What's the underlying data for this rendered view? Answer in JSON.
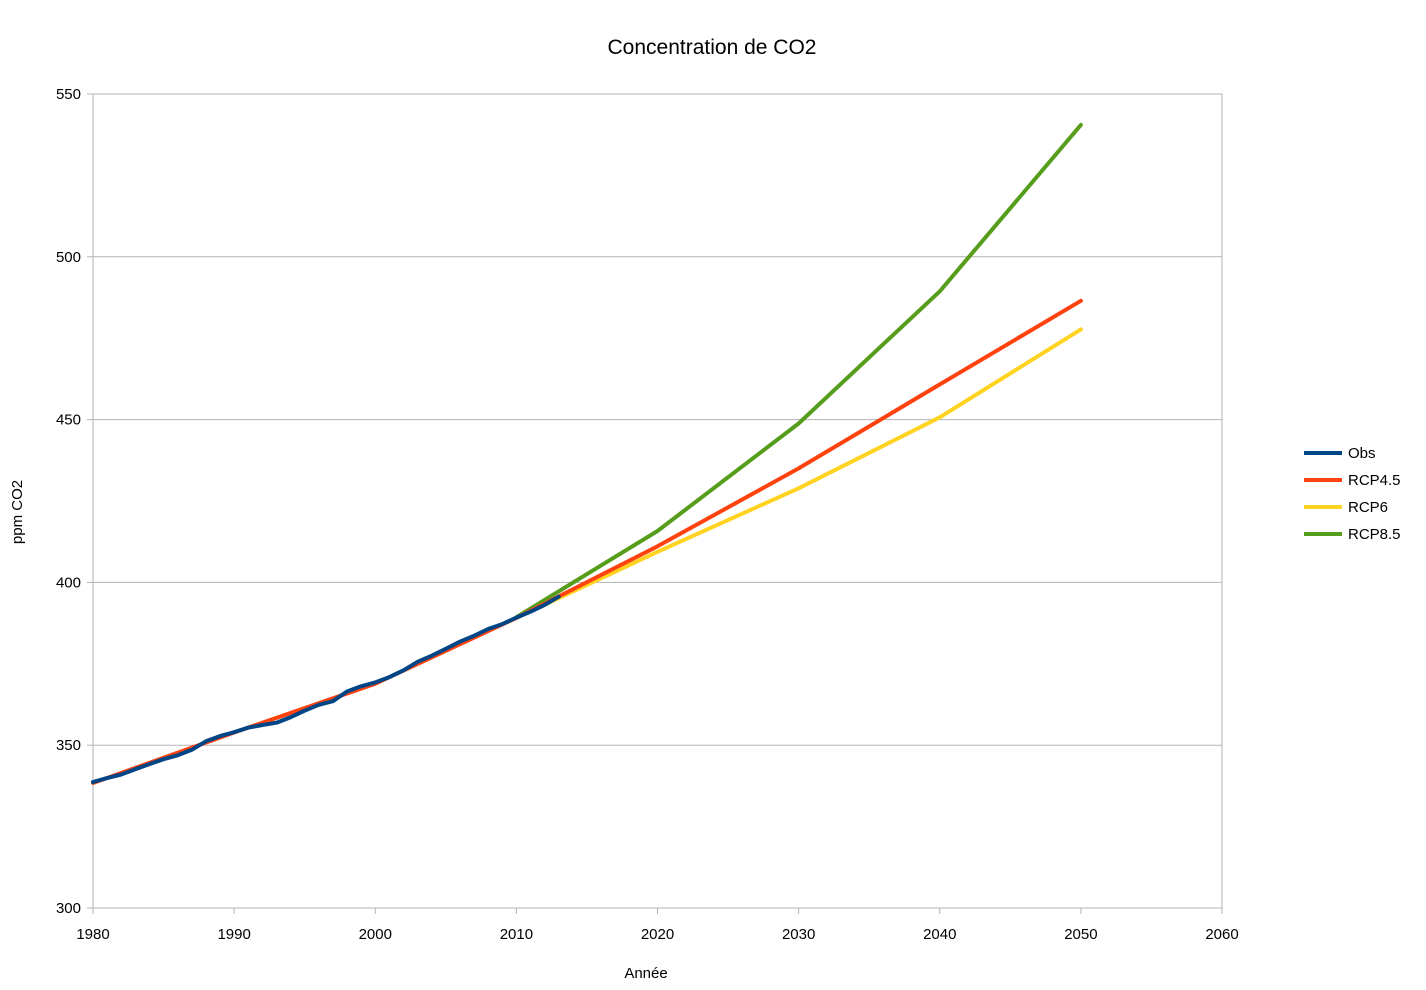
{
  "chart_data": {
    "type": "line",
    "title": "Concentration de CO2",
    "xlabel": "Année",
    "ylabel": "ppm CO2",
    "xlim": [
      1980,
      2060
    ],
    "ylim": [
      300,
      550
    ],
    "xticks": [
      1980,
      1990,
      2000,
      2010,
      2020,
      2030,
      2040,
      2050,
      2060
    ],
    "yticks": [
      300,
      350,
      400,
      450,
      500,
      550
    ],
    "grid": "horizontal",
    "legend_position": "right",
    "series": [
      {
        "name": "Obs",
        "color": "#004586",
        "points": [
          [
            1980,
            338.7
          ],
          [
            1981,
            339.9
          ],
          [
            1982,
            341.0
          ],
          [
            1983,
            342.6
          ],
          [
            1984,
            344.2
          ],
          [
            1985,
            345.7
          ],
          [
            1986,
            346.9
          ],
          [
            1987,
            348.6
          ],
          [
            1988,
            351.2
          ],
          [
            1989,
            352.8
          ],
          [
            1990,
            354.0
          ],
          [
            1991,
            355.4
          ],
          [
            1992,
            356.2
          ],
          [
            1993,
            356.9
          ],
          [
            1994,
            358.6
          ],
          [
            1995,
            360.6
          ],
          [
            1996,
            362.4
          ],
          [
            1997,
            363.5
          ],
          [
            1998,
            366.5
          ],
          [
            1999,
            368.1
          ],
          [
            2000,
            369.3
          ],
          [
            2001,
            370.9
          ],
          [
            2002,
            373.0
          ],
          [
            2003,
            375.6
          ],
          [
            2004,
            377.5
          ],
          [
            2005,
            379.6
          ],
          [
            2006,
            381.8
          ],
          [
            2007,
            383.6
          ],
          [
            2008,
            385.7
          ],
          [
            2009,
            387.2
          ],
          [
            2010,
            389.2
          ],
          [
            2011,
            391.0
          ],
          [
            2012,
            393.1
          ],
          [
            2013,
            395.6
          ]
        ]
      },
      {
        "name": "RCP4.5",
        "color": "#ff420e",
        "points": [
          [
            1980,
            338.4
          ],
          [
            1990,
            353.9
          ],
          [
            2000,
            368.9
          ],
          [
            2010,
            389.1
          ],
          [
            2020,
            411.1
          ],
          [
            2030,
            435.0
          ],
          [
            2040,
            460.8
          ],
          [
            2050,
            486.5
          ]
        ]
      },
      {
        "name": "RCP6",
        "color": "#ffd320",
        "points": [
          [
            2010,
            389.1
          ],
          [
            2020,
            409.4
          ],
          [
            2030,
            428.9
          ],
          [
            2040,
            450.7
          ],
          [
            2050,
            477.7
          ]
        ]
      },
      {
        "name": "RCP8.5",
        "color": "#579d1c",
        "points": [
          [
            2010,
            389.3
          ],
          [
            2020,
            415.8
          ],
          [
            2030,
            448.8
          ],
          [
            2040,
            489.4
          ],
          [
            2050,
            540.5
          ]
        ]
      }
    ]
  }
}
